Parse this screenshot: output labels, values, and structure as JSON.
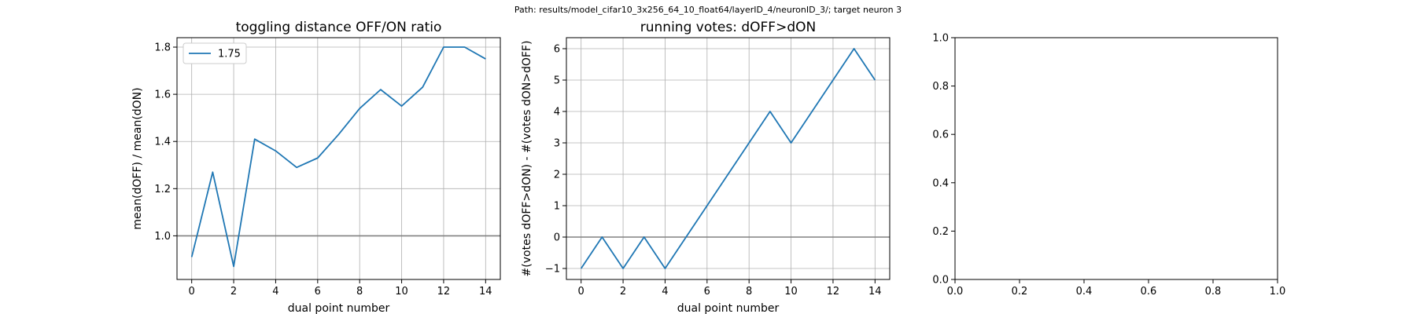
{
  "suptitle": "Path: results/model_cifar10_3x256_64_10_float64/layerID_4/neuronID_3/; target neuron 3",
  "chart_data": [
    {
      "type": "line",
      "title": "toggling distance OFF/ON ratio",
      "xlabel": "dual point number",
      "ylabel": "mean(dOFF) / mean(dON)",
      "xlim": [
        -0.7,
        14.7
      ],
      "ylim": [
        0.815,
        1.84
      ],
      "xticks": [
        0,
        2,
        4,
        6,
        8,
        10,
        12,
        14
      ],
      "yticks": [
        1.0,
        1.2,
        1.4,
        1.6,
        1.8
      ],
      "ytick_labels": [
        "1.0",
        "1.2",
        "1.4",
        "1.6",
        "1.8"
      ],
      "grid": true,
      "hline": 1.0,
      "legend": "upper left",
      "series": [
        {
          "name": "1.75",
          "color": "#1f77b4",
          "x": [
            0,
            1,
            2,
            3,
            4,
            5,
            6,
            7,
            8,
            9,
            10,
            11,
            12,
            13,
            14
          ],
          "values": [
            0.91,
            1.27,
            0.87,
            1.41,
            1.36,
            1.29,
            1.33,
            1.43,
            1.54,
            1.62,
            1.55,
            1.63,
            1.8,
            1.8,
            1.75
          ]
        }
      ]
    },
    {
      "type": "line",
      "title": "running votes: dOFF>dON",
      "xlabel": "dual point number",
      "ylabel": "#(votes dOFF>dON) - #(votes dON>dOFF)",
      "xlim": [
        -0.7,
        14.7
      ],
      "ylim": [
        -1.35,
        6.35
      ],
      "xticks": [
        0,
        2,
        4,
        6,
        8,
        10,
        12,
        14
      ],
      "yticks": [
        -1,
        0,
        1,
        2,
        3,
        4,
        5,
        6
      ],
      "ytick_labels": [
        "−1",
        "0",
        "1",
        "2",
        "3",
        "4",
        "5",
        "6"
      ],
      "grid": true,
      "hline": 0,
      "series": [
        {
          "color": "#1f77b4",
          "x": [
            0,
            1,
            2,
            3,
            4,
            5,
            6,
            7,
            8,
            9,
            10,
            11,
            12,
            13,
            14
          ],
          "values": [
            -1,
            0,
            -1,
            0,
            -1,
            0,
            1,
            2,
            3,
            4,
            3,
            4,
            5,
            6,
            5
          ]
        }
      ]
    },
    {
      "type": "line",
      "title": "",
      "xlim": [
        0,
        1
      ],
      "ylim": [
        0,
        1
      ],
      "xticks": [
        0.0,
        0.2,
        0.4,
        0.6,
        0.8,
        1.0
      ],
      "yticks": [
        0.0,
        0.2,
        0.4,
        0.6,
        0.8,
        1.0
      ],
      "xtick_labels": [
        "0.0",
        "0.2",
        "0.4",
        "0.6",
        "0.8",
        "1.0"
      ],
      "ytick_labels": [
        "0.0",
        "0.2",
        "0.4",
        "0.6",
        "0.8",
        "1.0"
      ],
      "grid": false,
      "series": []
    }
  ]
}
